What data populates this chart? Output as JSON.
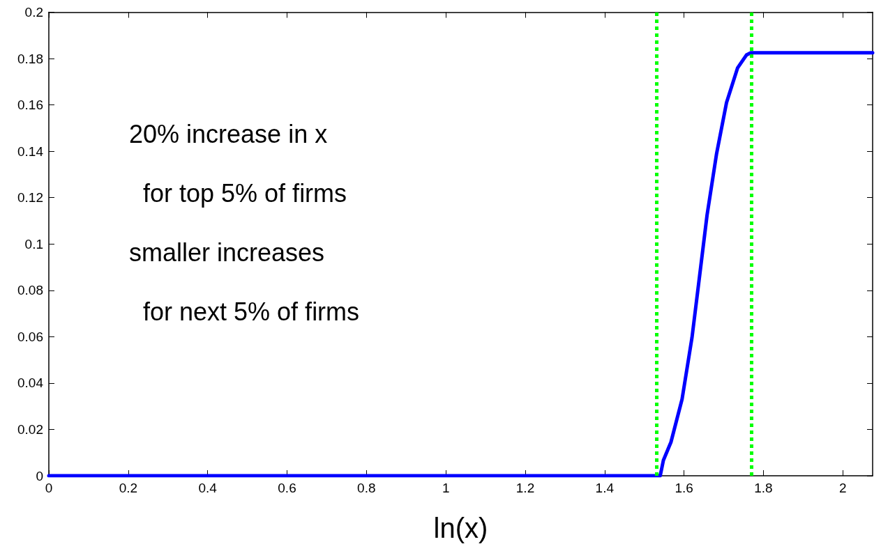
{
  "chart_data": {
    "type": "line",
    "xlabel": "ln(x)",
    "annotations": [
      "20% increase in x",
      "  for top 5% of firms",
      "smaller increases",
      "  for next 5% of firms"
    ],
    "series": [
      {
        "color": "#0000ff",
        "x": [
          0,
          1.54,
          1.548,
          1.567,
          1.595,
          1.62,
          1.639,
          1.658,
          1.682,
          1.707,
          1.735,
          1.757,
          1.768,
          2.075
        ],
        "values": [
          0,
          0,
          0.0067,
          0.0145,
          0.033,
          0.0596,
          0.086,
          0.1125,
          0.139,
          0.161,
          0.176,
          0.1815,
          0.1825,
          0.1825
        ]
      }
    ],
    "xlim": [
      0,
      2.075
    ],
    "xticks": [
      0,
      0.2,
      0.4,
      0.6,
      0.8,
      1,
      1.2,
      1.4,
      1.6,
      1.8,
      2
    ],
    "ylim": [
      0,
      0.2
    ],
    "yticks": [
      0,
      0.02,
      0.04,
      0.06,
      0.08,
      0.1,
      0.12,
      0.14,
      0.16,
      0.18,
      0.2
    ],
    "ref_lines": [
      {
        "axis": "x",
        "value": 1.532,
        "color": "#00ff00",
        "line_style": "dotted"
      },
      {
        "axis": "x",
        "value": 1.768,
        "color": "#00ff00",
        "line_style": "dotted"
      }
    ],
    "grid": false,
    "marker": "none",
    "line_style": "solid"
  }
}
